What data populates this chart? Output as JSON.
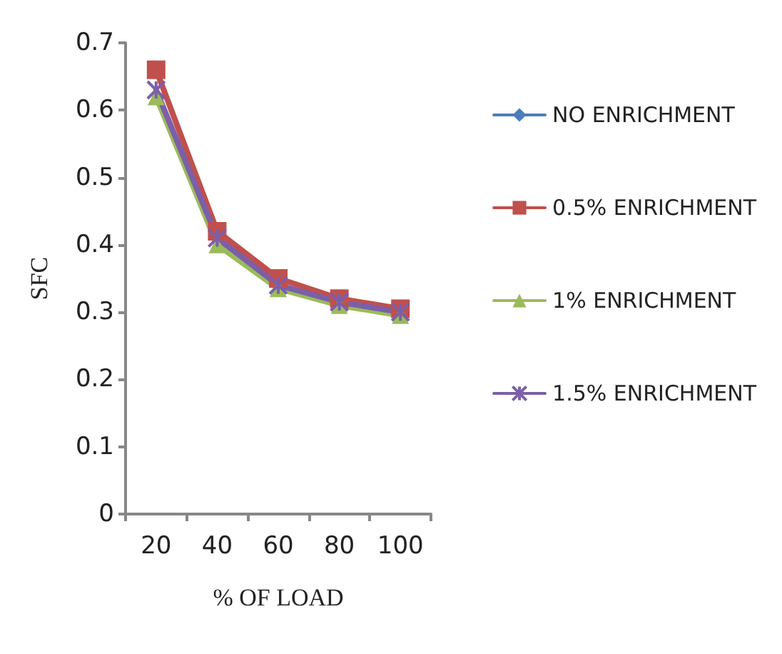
{
  "chart_data": {
    "type": "line",
    "xlabel": "% OF LOAD",
    "ylabel": "SFC",
    "categories": [
      "20",
      "40",
      "60",
      "80",
      "100"
    ],
    "series": [
      {
        "name": "NO ENRICHMENT",
        "color": "#4a7ebb",
        "marker": "diamond",
        "values": [
          null,
          null,
          null,
          null,
          null
        ]
      },
      {
        "name": "0.5% ENRICHMENT",
        "color": "#c0504d",
        "marker": "square",
        "values": [
          0.66,
          0.42,
          0.35,
          0.32,
          0.305
        ]
      },
      {
        "name": "1% ENRICHMENT",
        "color": "#9bbb59",
        "marker": "triangle",
        "values": [
          0.62,
          0.4,
          0.335,
          0.31,
          0.295
        ]
      },
      {
        "name": "1.5% ENRICHMENT",
        "color": "#7c5fa8",
        "marker": "cross",
        "values": [
          0.63,
          0.41,
          0.34,
          0.315,
          0.3
        ]
      }
    ],
    "ylim": [
      0,
      0.7
    ],
    "yticks": [
      0,
      0.1,
      0.2,
      0.3,
      0.4,
      0.5,
      0.6,
      0.7
    ],
    "grid": false,
    "legend": "right",
    "line_style": "solid"
  }
}
